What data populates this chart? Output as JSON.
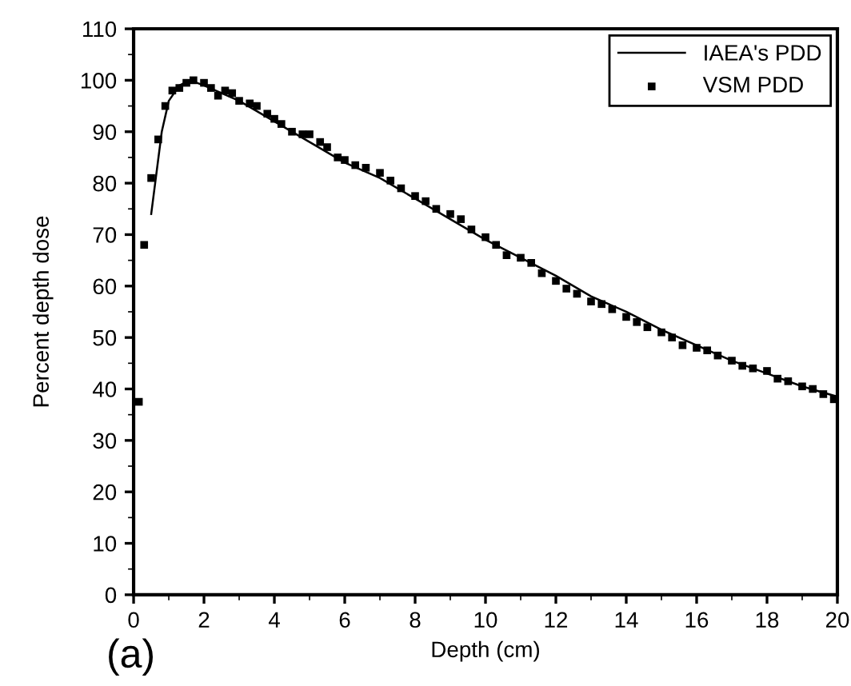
{
  "chart_data": {
    "type": "line",
    "xlabel": "Depth (cm)",
    "ylabel": "Percent depth dose",
    "xlim": [
      0,
      20
    ],
    "xticks": [
      0,
      2,
      4,
      6,
      8,
      10,
      12,
      14,
      16,
      18,
      20
    ],
    "ylim": [
      0,
      110
    ],
    "yticks": [
      0,
      10,
      20,
      30,
      40,
      50,
      60,
      70,
      80,
      90,
      100,
      110
    ],
    "grid": false,
    "legend": "top right",
    "annotations": [
      "(a)"
    ],
    "series": [
      {
        "name": "IAEA's PDD",
        "color": "#000000",
        "marker": "none",
        "line_style": "solid",
        "x": [
          0.5,
          0.8,
          1.0,
          1.3,
          1.6,
          2.0,
          3.0,
          4.0,
          5.0,
          6.0,
          7.0,
          8.0,
          9.0,
          10.0,
          11.0,
          12.0,
          13.0,
          14.0,
          15.0,
          16.0,
          17.0,
          18.0,
          19.0,
          20.0
        ],
        "values": [
          74,
          90,
          96,
          99,
          100,
          99,
          96,
          92,
          88,
          84,
          81,
          77,
          73,
          69,
          65.5,
          62,
          58,
          55,
          51.5,
          48.5,
          45.5,
          43,
          40.5,
          38.5
        ]
      },
      {
        "name": "VSM PDD",
        "type": "scatter",
        "color": "#000000",
        "marker": "square",
        "x": [
          0.15,
          0.3,
          0.5,
          0.7,
          0.9,
          1.1,
          1.3,
          1.5,
          1.7,
          2.0,
          2.2,
          2.4,
          2.6,
          2.8,
          3.0,
          3.3,
          3.5,
          3.8,
          4.0,
          4.2,
          4.5,
          4.8,
          5.0,
          5.3,
          5.5,
          5.8,
          6.0,
          6.3,
          6.6,
          7.0,
          7.3,
          7.6,
          8.0,
          8.3,
          8.6,
          9.0,
          9.3,
          9.6,
          10.0,
          10.3,
          10.6,
          11.0,
          11.3,
          11.6,
          12.0,
          12.3,
          12.6,
          13.0,
          13.3,
          13.6,
          14.0,
          14.3,
          14.6,
          15.0,
          15.3,
          15.6,
          16.0,
          16.3,
          16.6,
          17.0,
          17.3,
          17.6,
          18.0,
          18.3,
          18.6,
          19.0,
          19.3,
          19.6,
          19.9
        ],
        "values": [
          37.5,
          68,
          81,
          88.5,
          95,
          98,
          98.5,
          99.5,
          100,
          99.5,
          98.5,
          97,
          98,
          97.5,
          96,
          95.5,
          95,
          93.5,
          92.5,
          91.5,
          90,
          89.5,
          89.5,
          88,
          87,
          85,
          84.5,
          83.5,
          83,
          82,
          80.5,
          79,
          77.5,
          76.5,
          75,
          74,
          73,
          71,
          69.5,
          68,
          66,
          65.5,
          64.5,
          62.5,
          61,
          59.5,
          58.5,
          57,
          56.5,
          55.5,
          54,
          53,
          52,
          51,
          50,
          48.5,
          48,
          47.5,
          46.5,
          45.5,
          44.5,
          44,
          43.5,
          42,
          41.5,
          40.5,
          40,
          39,
          38
        ]
      }
    ]
  }
}
